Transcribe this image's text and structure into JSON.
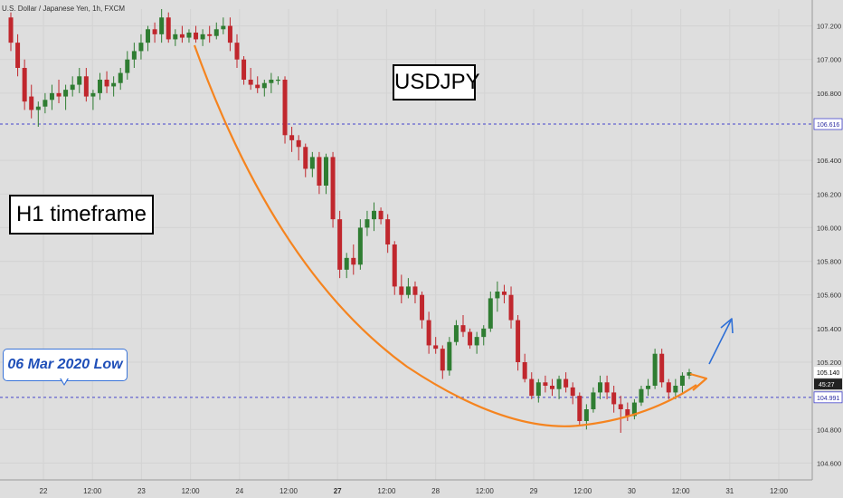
{
  "header": {
    "symbol_line": "U.S. Dollar / Japanese Yen, 1h, FXCM"
  },
  "annotations": {
    "symbol_box": "USDJPY",
    "timeframe_box": "H1 timeframe",
    "callout": "06 Mar 2020 Low"
  },
  "colors": {
    "bull": "#2f7d32",
    "bear": "#c0272d",
    "curve": "#f5841f",
    "arrow": "#2e6fd6",
    "hline": "#4444cc",
    "text": "#333333",
    "background": "#dedede"
  },
  "chart_data": {
    "type": "candlestick",
    "ylim": [
      104.5,
      107.3
    ],
    "price_ticks": [
      "107.200",
      "107.000",
      "106.800",
      "106.400",
      "106.200",
      "106.000",
      "105.800",
      "105.600",
      "105.400",
      "105.200",
      "104.800",
      "104.600"
    ],
    "x_ticks": [
      {
        "label": "22",
        "bold": false
      },
      {
        "label": "12:00",
        "bold": false
      },
      {
        "label": "23",
        "bold": false
      },
      {
        "label": "12:00",
        "bold": false
      },
      {
        "label": "24",
        "bold": false
      },
      {
        "label": "12:00",
        "bold": false
      },
      {
        "label": "27",
        "bold": true
      },
      {
        "label": "12:00",
        "bold": false
      },
      {
        "label": "28",
        "bold": false
      },
      {
        "label": "12:00",
        "bold": false
      },
      {
        "label": "29",
        "bold": false
      },
      {
        "label": "12:00",
        "bold": false
      },
      {
        "label": "30",
        "bold": false
      },
      {
        "label": "12:00",
        "bold": false
      },
      {
        "label": "31",
        "bold": false
      },
      {
        "label": "12:00",
        "bold": false
      }
    ],
    "levels": [
      {
        "name": "resistance",
        "value": 106.616,
        "label": "106.616"
      },
      {
        "name": "support",
        "value": 104.991,
        "label": "104.991"
      }
    ],
    "last_price": {
      "value": 105.14,
      "label": "105.140",
      "countdown": "45:27"
    },
    "candles": [
      [
        107.25,
        107.28,
        107.05,
        107.1
      ],
      [
        107.1,
        107.15,
        106.9,
        106.95
      ],
      [
        106.95,
        107.0,
        106.7,
        106.75
      ],
      [
        106.78,
        106.85,
        106.65,
        106.7
      ],
      [
        106.7,
        106.75,
        106.6,
        106.72
      ],
      [
        106.72,
        106.8,
        106.68,
        106.76
      ],
      [
        106.76,
        106.85,
        106.7,
        106.8
      ],
      [
        106.8,
        106.88,
        106.74,
        106.78
      ],
      [
        106.78,
        106.85,
        106.7,
        106.82
      ],
      [
        106.82,
        106.9,
        106.78,
        106.85
      ],
      [
        106.85,
        106.95,
        106.8,
        106.9
      ],
      [
        106.9,
        106.95,
        106.75,
        106.78
      ],
      [
        106.78,
        106.82,
        106.7,
        106.8
      ],
      [
        106.8,
        106.92,
        106.76,
        106.88
      ],
      [
        106.88,
        106.93,
        106.8,
        106.84
      ],
      [
        106.84,
        106.9,
        106.78,
        106.86
      ],
      [
        106.86,
        106.95,
        106.82,
        106.92
      ],
      [
        106.92,
        107.05,
        106.88,
        107.0
      ],
      [
        107.0,
        107.1,
        106.95,
        107.05
      ],
      [
        107.05,
        107.15,
        107.0,
        107.1
      ],
      [
        107.1,
        107.2,
        107.05,
        107.18
      ],
      [
        107.18,
        107.22,
        107.1,
        107.15
      ],
      [
        107.15,
        107.3,
        107.1,
        107.25
      ],
      [
        107.25,
        107.28,
        107.1,
        107.12
      ],
      [
        107.12,
        107.18,
        107.08,
        107.15
      ],
      [
        107.15,
        107.2,
        107.1,
        107.13
      ],
      [
        107.13,
        107.18,
        107.1,
        107.16
      ],
      [
        107.16,
        107.2,
        107.1,
        107.12
      ],
      [
        107.12,
        107.18,
        107.08,
        107.15
      ],
      [
        107.15,
        107.2,
        107.1,
        107.14
      ],
      [
        107.14,
        107.22,
        107.12,
        107.18
      ],
      [
        107.18,
        107.25,
        107.15,
        107.2
      ],
      [
        107.2,
        107.25,
        107.05,
        107.1
      ],
      [
        107.1,
        107.15,
        106.95,
        107.0
      ],
      [
        107.0,
        107.02,
        106.85,
        106.88
      ],
      [
        106.88,
        106.95,
        106.82,
        106.85
      ],
      [
        106.85,
        106.9,
        106.8,
        106.83
      ],
      [
        106.83,
        106.88,
        106.78,
        106.86
      ],
      [
        106.86,
        106.92,
        106.8,
        106.88
      ],
      [
        106.88,
        106.9,
        106.85,
        106.88
      ],
      [
        106.88,
        106.9,
        106.5,
        106.55
      ],
      [
        106.55,
        106.6,
        106.45,
        106.52
      ],
      [
        106.52,
        106.55,
        106.4,
        106.48
      ],
      [
        106.48,
        106.5,
        106.3,
        106.35
      ],
      [
        106.35,
        106.45,
        106.3,
        106.42
      ],
      [
        106.42,
        106.45,
        106.2,
        106.25
      ],
      [
        106.25,
        106.44,
        106.2,
        106.42
      ],
      [
        106.42,
        106.45,
        106.0,
        106.05
      ],
      [
        106.05,
        106.1,
        105.7,
        105.75
      ],
      [
        105.75,
        105.85,
        105.7,
        105.82
      ],
      [
        105.82,
        105.9,
        105.72,
        105.78
      ],
      [
        105.78,
        106.05,
        105.75,
        106.0
      ],
      [
        106.0,
        106.1,
        105.95,
        106.05
      ],
      [
        106.05,
        106.15,
        105.98,
        106.1
      ],
      [
        106.1,
        106.12,
        106.02,
        106.05
      ],
      [
        106.05,
        106.08,
        105.85,
        105.9
      ],
      [
        105.9,
        105.92,
        105.6,
        105.65
      ],
      [
        105.65,
        105.72,
        105.55,
        105.6
      ],
      [
        105.6,
        105.7,
        105.58,
        105.65
      ],
      [
        105.65,
        105.68,
        105.55,
        105.6
      ],
      [
        105.6,
        105.62,
        105.4,
        105.45
      ],
      [
        105.45,
        105.5,
        105.25,
        105.3
      ],
      [
        105.3,
        105.35,
        105.25,
        105.28
      ],
      [
        105.28,
        105.3,
        105.1,
        105.15
      ],
      [
        105.15,
        105.35,
        105.12,
        105.32
      ],
      [
        105.32,
        105.45,
        105.3,
        105.42
      ],
      [
        105.42,
        105.48,
        105.35,
        105.38
      ],
      [
        105.38,
        105.4,
        105.28,
        105.3
      ],
      [
        105.3,
        105.38,
        105.25,
        105.35
      ],
      [
        105.35,
        105.42,
        105.3,
        105.4
      ],
      [
        105.4,
        105.62,
        105.38,
        105.58
      ],
      [
        105.58,
        105.68,
        105.5,
        105.62
      ],
      [
        105.62,
        105.66,
        105.55,
        105.6
      ],
      [
        105.6,
        105.65,
        105.4,
        105.45
      ],
      [
        105.45,
        105.48,
        105.15,
        105.2
      ],
      [
        105.2,
        105.25,
        105.08,
        105.1
      ],
      [
        105.1,
        105.14,
        104.98,
        105.0
      ],
      [
        105.0,
        105.1,
        104.96,
        105.08
      ],
      [
        105.08,
        105.12,
        105.02,
        105.06
      ],
      [
        105.06,
        105.1,
        105.0,
        105.04
      ],
      [
        105.04,
        105.12,
        104.98,
        105.1
      ],
      [
        105.1,
        105.14,
        105.02,
        105.05
      ],
      [
        105.05,
        105.08,
        104.95,
        105.0
      ],
      [
        105.0,
        105.02,
        104.82,
        104.85
      ],
      [
        104.85,
        104.95,
        104.8,
        104.92
      ],
      [
        104.92,
        105.05,
        104.9,
        105.02
      ],
      [
        105.02,
        105.12,
        104.98,
        105.08
      ],
      [
        105.08,
        105.12,
        104.98,
        105.02
      ],
      [
        105.02,
        105.06,
        104.9,
        104.95
      ],
      [
        104.95,
        105.0,
        104.78,
        104.92
      ],
      [
        104.92,
        104.96,
        104.85,
        104.88
      ],
      [
        104.88,
        104.98,
        104.86,
        104.96
      ],
      [
        104.96,
        105.06,
        104.94,
        105.04
      ],
      [
        105.04,
        105.1,
        105.0,
        105.06
      ],
      [
        105.06,
        105.28,
        105.04,
        105.25
      ],
      [
        105.25,
        105.28,
        105.05,
        105.08
      ],
      [
        105.08,
        105.1,
        104.98,
        105.02
      ],
      [
        105.02,
        105.1,
        104.98,
        105.06
      ],
      [
        105.06,
        105.14,
        105.02,
        105.12
      ],
      [
        105.12,
        105.16,
        105.1,
        105.14
      ]
    ]
  }
}
